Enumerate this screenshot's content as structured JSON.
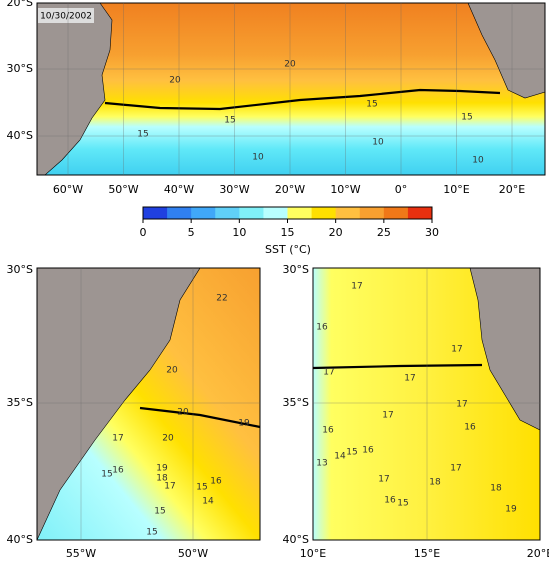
{
  "date": "10/30/2002",
  "top_map": {
    "lat_labels": [
      "20°S",
      "30°S",
      "40°S"
    ],
    "lon_labels": [
      "60°W",
      "50°W",
      "40°W",
      "30°W",
      "20°W",
      "10°W",
      "0°",
      "10°E",
      "20°E"
    ],
    "contour_labels": [
      "20",
      "20",
      "15",
      "15",
      "15",
      "15",
      "10",
      "10",
      "10"
    ]
  },
  "colorbar": {
    "ticks": [
      0,
      5,
      10,
      15,
      20,
      25,
      30
    ],
    "label": "SST (°C)",
    "colors": [
      "#2040e0",
      "#3080f0",
      "#40a8f8",
      "#60d0f8",
      "#80f0f8",
      "#b8ffff",
      "#ffff60",
      "#ffe000",
      "#ffc040",
      "#f8a030",
      "#f07818",
      "#e83010"
    ]
  },
  "left_map": {
    "lat_labels": [
      "30°S",
      "35°S",
      "40°S"
    ],
    "lon_labels": [
      "55°W",
      "50°W"
    ],
    "contour_labels": [
      "22",
      "20",
      "20",
      "20",
      "19",
      "17",
      "16",
      "15",
      "19",
      "18",
      "17",
      "15",
      "16",
      "14",
      "15",
      "15"
    ]
  },
  "right_map": {
    "lat_labels": [
      "30°S",
      "35°S",
      "40°S"
    ],
    "lon_labels": [
      "10°E",
      "15°E",
      "20°E"
    ],
    "contour_labels": [
      "17",
      "16",
      "17",
      "17",
      "17",
      "17",
      "16",
      "17",
      "16",
      "15",
      "16",
      "14",
      "13",
      "17",
      "16",
      "15",
      "17",
      "18",
      "18",
      "19"
    ]
  }
}
